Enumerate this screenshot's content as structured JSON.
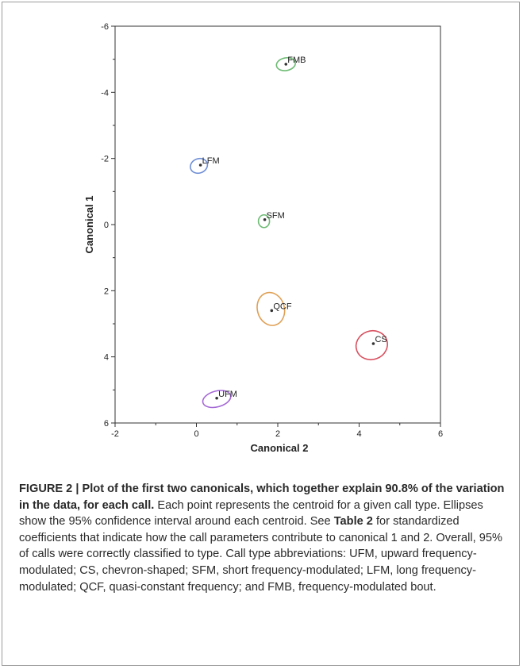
{
  "chart_data": {
    "type": "scatter",
    "xlabel": "Canonical 2",
    "ylabel": "Canonical 1",
    "xlim": [
      -2,
      6
    ],
    "ylim": [
      -6,
      6
    ],
    "y_inverted": true,
    "x_ticks": [
      -2,
      0,
      2,
      4,
      6
    ],
    "y_ticks": [
      -6,
      -4,
      -2,
      0,
      2,
      4,
      6
    ],
    "grid": false,
    "points": [
      {
        "label": "FMB",
        "x": 2.2,
        "y": -4.85,
        "color": "#6dbb74"
      },
      {
        "label": "LFM",
        "x": 0.1,
        "y": -1.8,
        "color": "#6f8fd6"
      },
      {
        "label": "SFM",
        "x": 1.68,
        "y": -0.15,
        "color": "#6dbb74"
      },
      {
        "label": "QCF",
        "x": 1.85,
        "y": 2.6,
        "color": "#e0a055"
      },
      {
        "label": "CS",
        "x": 4.35,
        "y": 3.6,
        "color": "#d9505f"
      },
      {
        "label": "UFM",
        "x": 0.5,
        "y": 5.25,
        "color": "#a468d6"
      }
    ]
  },
  "caption": {
    "title": "FIGURE 2 | Plot of the first two canonicals, which together explain 90.8% of the variation in the data, for each call.",
    "body_part1": " Each point represents the centroid for a given call type. Ellipses show the 95% confidence interval around each centroid. See ",
    "table_ref": "Table 2",
    "body_part2": " for standardized coefficients that indicate how the call parameters contribute to canonical 1 and 2. Overall, 95% of calls were correctly classified to type. Call type abbreviations: UFM, upward frequency-modulated; CS, chevron-shaped; SFM, short frequency-modulated; LFM, long frequency-modulated; QCF, quasi-constant frequency; and FMB, frequency-modulated bout."
  }
}
